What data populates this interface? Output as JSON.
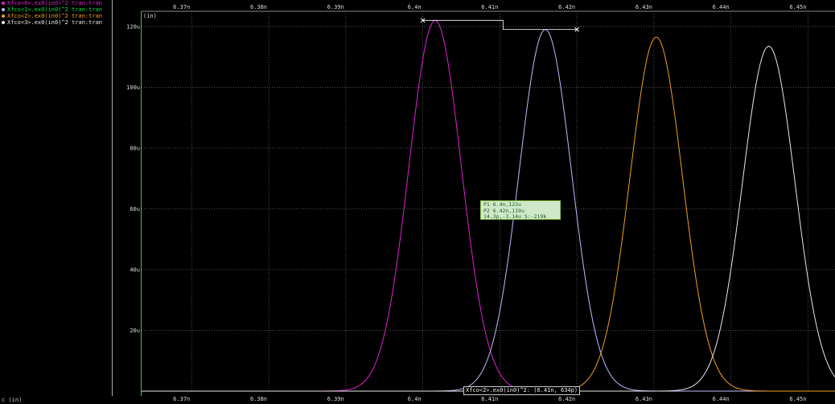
{
  "legend": [
    {
      "label": "Xfco<0>.ex0(in0)^2 tran:tran",
      "color": "#e020d0"
    },
    {
      "label": "Xfco<1>.ex0(in0)^2 tran:tran",
      "color": "#bcbcff"
    },
    {
      "label": "Xfco<2>.ex0(in0)^2 tran:tran",
      "color": "#f0a020"
    },
    {
      "label": "Xfco<3>.ex0(in0)^2 tran:tran",
      "color": "#e8e8e8"
    }
  ],
  "y_unit_label": "(in)",
  "x_label": "c (in)",
  "delta_marker": {
    "p1": "P1 6.4n,122u",
    "p2": "P2 6.42n,119u",
    "delta": "14.3p,-3.14u S:-219k"
  },
  "cursor_readout": "Xfco<2>.ex0(in0)^2: (6.41n, 634p)",
  "colors": {
    "grid": "#6f6f6f",
    "marker": "#ffffff",
    "text": "#dddddd"
  },
  "chart_data": {
    "type": "line",
    "x_unit": "s",
    "y_unit": "A^2",
    "xlim": [
      6.3635e-09,
      6.4535e-09
    ],
    "ylim": [
      0,
      0.000125
    ],
    "x_ticks": [
      6.37e-09,
      6.38e-09,
      6.39e-09,
      6.4e-09,
      6.41e-09,
      6.42e-09,
      6.43e-09,
      6.44e-09,
      6.45e-09
    ],
    "x_tick_labels": [
      "6.37n",
      "6.38n",
      "6.39n",
      "6.4n",
      "6.41n",
      "6.42n",
      "6.43n",
      "6.44n",
      "6.45n"
    ],
    "y_ticks": [
      2e-05,
      4e-05,
      6e-05,
      8e-05,
      0.0001,
      0.00012
    ],
    "y_tick_labels": [
      "20u",
      "40u",
      "60u",
      "80u",
      "100u",
      "120u"
    ],
    "grid": true,
    "legend_position": "top-left",
    "series": [
      {
        "name": "Xfco<0>.ex0(in0)^2 tran:tran",
        "peak_x": 6.4016e-09,
        "peak_y": 0.000122,
        "sigma": 3.4e-12
      },
      {
        "name": "Xfco<1>.ex0(in0)^2 tran:tran",
        "peak_x": 6.4159e-09,
        "peak_y": 0.000119,
        "sigma": 3.4e-12
      },
      {
        "name": "Xfco<2>.ex0(in0)^2 tran:tran",
        "peak_x": 6.4303e-09,
        "peak_y": 0.0001165,
        "sigma": 3.4e-12
      },
      {
        "name": "Xfco<3>.ex0(in0)^2 tran:tran",
        "peak_x": 6.4449e-09,
        "peak_y": 0.0001135,
        "sigma": 3.4e-12
      }
    ],
    "markers": [
      {
        "label": "P1",
        "x": 6.4e-09,
        "y": 0.000122
      },
      {
        "label": "P2",
        "x": 6.42e-09,
        "y": 0.000119
      }
    ]
  }
}
